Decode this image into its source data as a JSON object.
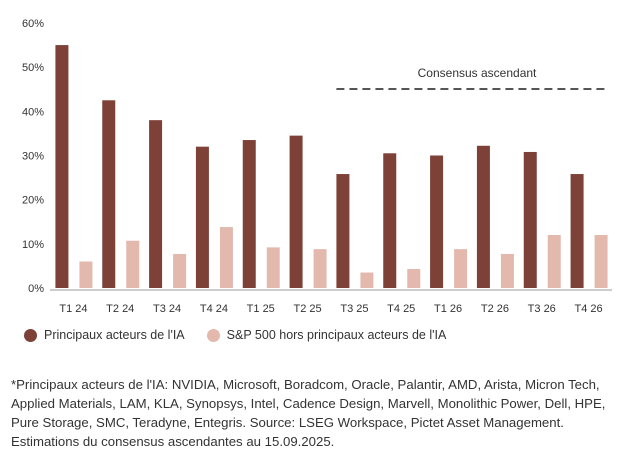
{
  "colors": {
    "primary": "#7d4137",
    "secondary": "#e3b8ad",
    "dashed": "#555555"
  },
  "chart_data": {
    "type": "bar",
    "categories": [
      "T1 24",
      "T2 24",
      "T3 24",
      "T4 24",
      "T1 25",
      "T2 25",
      "T3 25",
      "T4 25",
      "T1 26",
      "T2 26",
      "T3 26",
      "T4 26"
    ],
    "series": [
      {
        "name": "Principaux acteurs de l'IA",
        "values": [
          55,
          42.5,
          38,
          32,
          33.5,
          34.5,
          25.8,
          30.5,
          30,
          32.2,
          30.8,
          25.8
        ]
      },
      {
        "name": "S&P 500 hors principaux acteurs de l'IA",
        "values": [
          6,
          10.7,
          7.7,
          13.8,
          9.2,
          8.8,
          3.5,
          4.3,
          8.8,
          7.7,
          12,
          12
        ]
      }
    ],
    "y_ticks": [
      "0%",
      "10%",
      "20%",
      "30%",
      "40%",
      "50%",
      "60%"
    ],
    "ylim": [
      0,
      60
    ],
    "annotation": {
      "text": "Consensus ascendant",
      "from_category": "T3 25",
      "to_category": "T4 26"
    },
    "grid": false,
    "legend_position": "bottom-left"
  },
  "footnote": "*Principaux acteurs de l'IA: NVIDIA, Microsoft, Boradcom, Oracle, Palantir, AMD, Arista, Micron Tech, Applied Materials, LAM, KLA, Synopsys, Intel, Cadence Design, Marvell, Monolithic Power, Dell, HPE, Pure Storage, SMC, Teradyne, Entegris. Source: LSEG Workspace, Pictet Asset Management. Estimations du consensus ascendantes au 15.09.2025."
}
